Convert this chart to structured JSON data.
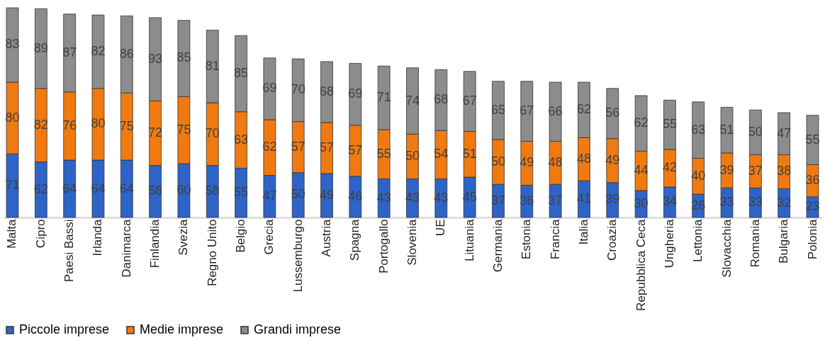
{
  "chart_data": {
    "type": "bar",
    "stacked": true,
    "data_labels": true,
    "legend": "bottom",
    "grid": false,
    "categories": [
      "Malta",
      "Cipro",
      "Paesi Bassi",
      "Irlanda",
      "Danimarca",
      "Finlandia",
      "Svezia",
      "Regno Unito",
      "Belgio",
      "Grecia",
      "Lussemburgo",
      "Austria",
      "Spagna",
      "Portogallo",
      "Slovenia",
      "UE",
      "Lituania",
      "Germania",
      "Estonia",
      "Francia",
      "Italia",
      "Croazia",
      "Repubblica Ceca",
      "Ungheria",
      "Lettonia",
      "Slovacchia",
      "Romania",
      "Bulgaria",
      "Polonia"
    ],
    "series": [
      {
        "name": "Piccole imprese",
        "color": "#2e64c8",
        "values": [
          71,
          62,
          64,
          64,
          64,
          58,
          60,
          58,
          55,
          47,
          50,
          49,
          46,
          43,
          43,
          43,
          45,
          37,
          36,
          37,
          41,
          39,
          30,
          34,
          26,
          33,
          33,
          32,
          23
        ]
      },
      {
        "name": "Medie imprese",
        "color": "#f07a10",
        "values": [
          80,
          82,
          76,
          80,
          75,
          72,
          75,
          70,
          63,
          62,
          57,
          57,
          57,
          55,
          50,
          54,
          51,
          50,
          49,
          48,
          48,
          49,
          44,
          42,
          40,
          39,
          37,
          38,
          36
        ]
      },
      {
        "name": "Grandi imprese",
        "color": "#8c8c8c",
        "values": [
          83,
          89,
          87,
          82,
          86,
          93,
          85,
          81,
          85,
          69,
          70,
          68,
          69,
          71,
          74,
          68,
          67,
          65,
          67,
          66,
          62,
          56,
          62,
          55,
          63,
          51,
          50,
          47,
          55
        ]
      }
    ]
  }
}
